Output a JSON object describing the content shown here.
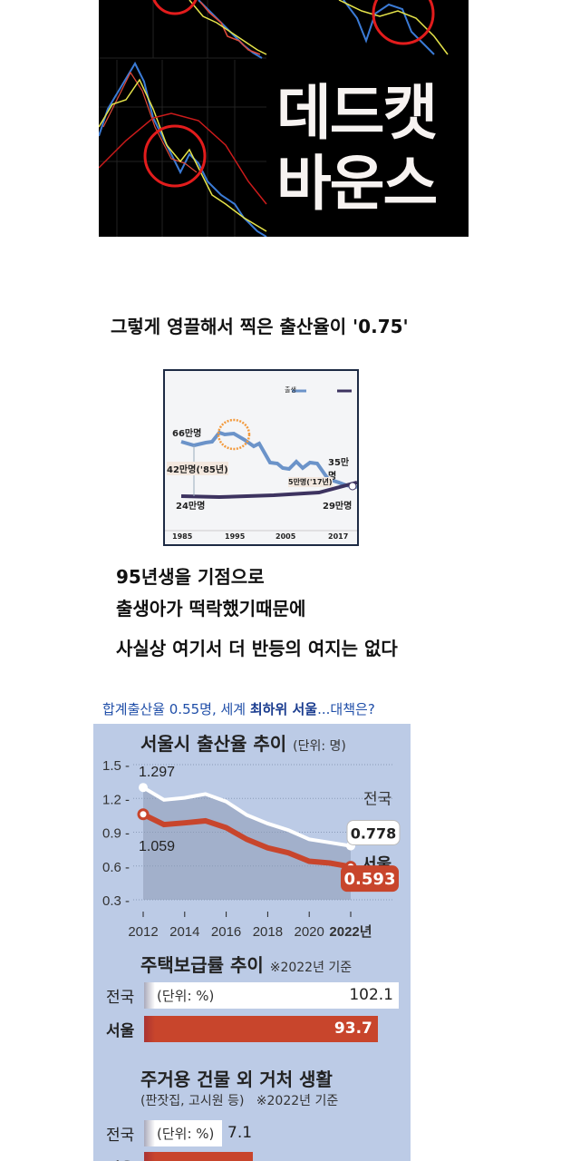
{
  "hero": {
    "title_line1": "데드캣",
    "title_line2": "바운스"
  },
  "caption": "그렇게 영끌해서 찍은 출산율이 '0.75'",
  "births_image": {
    "legend": [
      "출생",
      "사망"
    ],
    "labels": {
      "peak": "66만명",
      "start": "42만명('85년)",
      "deaths_start": "24만명",
      "births_2017": "35만명",
      "gap_2017": "5만명('17년)",
      "deaths_2017": "29만명"
    },
    "x_ticks": [
      "1985",
      "1995",
      "2005",
      "2017"
    ],
    "colors": {
      "births": "#6b93c9",
      "deaths": "#3d3360",
      "highlight": "#f39a3c"
    }
  },
  "body_lines": [
    "95년생을 기점으로",
    "출생아가 떡락했기때문에",
    "사실상 여기서 더 반등의 여지는 없다"
  ],
  "headline": {
    "part1": "합계출산율 0.55명, 세계 ",
    "bold": "최하위 서울",
    "part2": "...대책은?"
  },
  "infographic": {
    "chart_data": {
      "type": "line",
      "title": "서울시 출산율 추이",
      "unit": "(단위: 명)",
      "x": [
        2012,
        2013,
        2014,
        2015,
        2016,
        2017,
        2018,
        2019,
        2020,
        2021,
        2022
      ],
      "x_ticks": [
        "2012",
        "2014",
        "2016",
        "2018",
        "2020",
        "2022년"
      ],
      "y_ticks": [
        "1.5",
        "1.2",
        "0.9",
        "0.6",
        "0.3"
      ],
      "ylim": [
        0.3,
        1.5
      ],
      "grid": true,
      "series": [
        {
          "name": "전국",
          "color": "#ffffff",
          "values": [
            1.297,
            1.187,
            1.205,
            1.239,
            1.172,
            1.052,
            0.977,
            0.918,
            0.837,
            0.808,
            0.778
          ],
          "start_label": "1.297",
          "end_label": "0.778"
        },
        {
          "name": "서울",
          "color": "#c8452c",
          "values": [
            1.059,
            0.968,
            0.983,
            1.001,
            0.94,
            0.836,
            0.761,
            0.717,
            0.642,
            0.626,
            0.593
          ],
          "start_label": "1.059",
          "end_label": "0.593"
        }
      ]
    },
    "housing": {
      "title": "주택보급률 추이",
      "note": "※2022년 기준",
      "unit": "(단위: %)",
      "rows": [
        {
          "label": "전국",
          "value": 102.1,
          "text": "102.1"
        },
        {
          "label": "서울",
          "value": 93.7,
          "text": "93.7"
        }
      ]
    },
    "non_housing": {
      "title": "주거용 건물 외 거처 생활",
      "subtitle": "(판잣집, 고시원 등)",
      "note": "※2022년 기준",
      "unit": "(단위: %)",
      "rows": [
        {
          "label": "전국",
          "value": 7.1,
          "text": "7.1"
        },
        {
          "label": "서울"
        }
      ]
    }
  }
}
